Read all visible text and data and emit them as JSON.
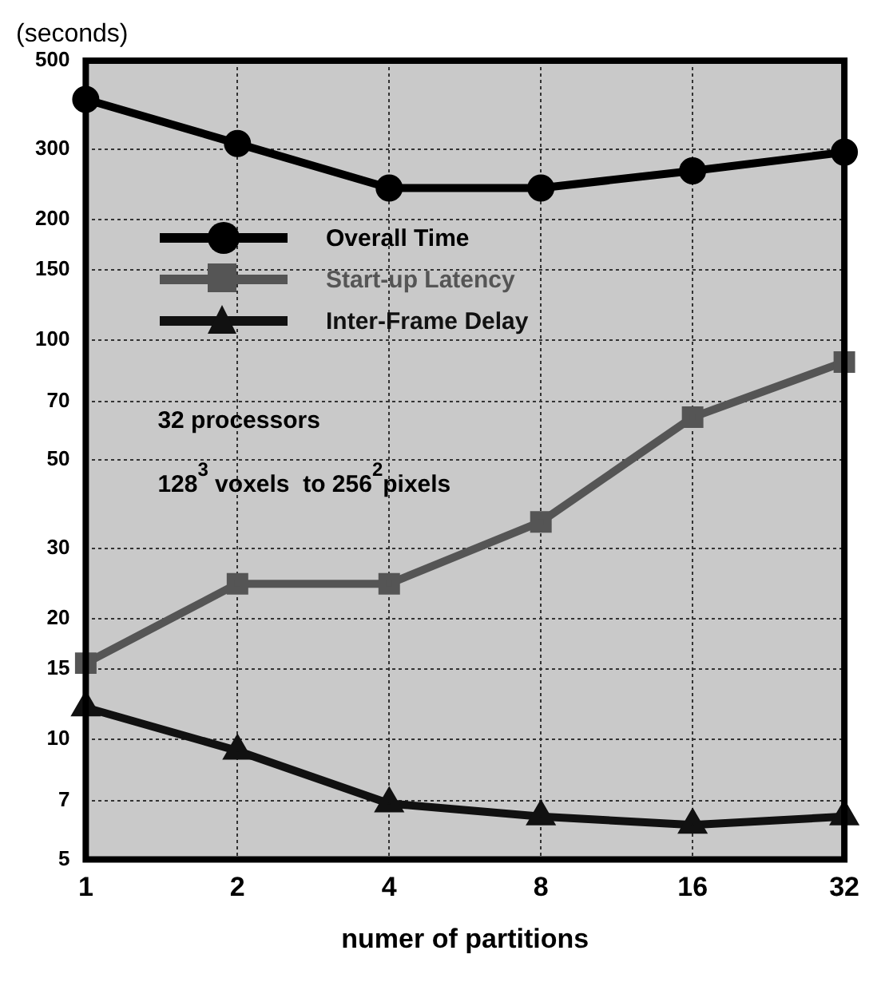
{
  "chart_data": {
    "type": "line",
    "xlabel": "numer of partitions",
    "ylabel": "(seconds)",
    "categories": [
      "1",
      "2",
      "4",
      "8",
      "16",
      "32"
    ],
    "series": [
      {
        "name": "Overall Time",
        "color": "#000000",
        "marker": "circle",
        "values": [
          400,
          310,
          240,
          240,
          265,
          295
        ]
      },
      {
        "name": "Start-up Latency",
        "color": "#555555",
        "marker": "square",
        "values": [
          15.5,
          24.5,
          24.5,
          35,
          64,
          88
        ]
      },
      {
        "name": "Inter-Frame Delay",
        "color": "#111111",
        "marker": "triangle",
        "values": [
          12,
          9.35,
          6.9,
          6.4,
          6.1,
          6.4
        ]
      }
    ],
    "log": "y",
    "ylim": [
      5,
      500
    ],
    "yticks": [
      5,
      7,
      10,
      15,
      20,
      30,
      50,
      70,
      100,
      150,
      200,
      300,
      500
    ],
    "grid": true,
    "legend": "top left",
    "annotations": [
      "32 processors",
      "128$^{3}$ voxels  to 256$^{2}$pixels"
    ]
  }
}
